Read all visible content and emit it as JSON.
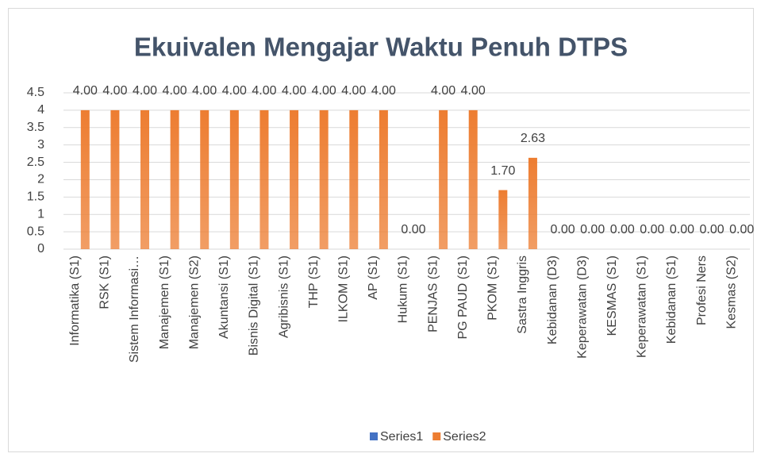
{
  "chart_data": {
    "type": "bar",
    "title": "Ekuivalen Mengajar Waktu Penuh DTPS",
    "categories": [
      "Informatika (S1)",
      "RSK (S1)",
      "Sistem Informasi…",
      "Manajemen (S1)",
      "Manajemen (S2)",
      "Akuntansi  (S1)",
      "Bisnis Digital  (S1)",
      "Agribisnis  (S1)",
      "THP (S1)",
      "ILKOM (S1)",
      "AP (S1)",
      "Hukum (S1)",
      "PENJAS (S1)",
      "PG PAUD (S1)",
      "PKOM (S1)",
      "Sastra Inggris",
      "Kebidanan  (D3)",
      "Keperawatan  (D3)",
      "KESMAS (S1)",
      "Keperawatan (S1)",
      "Kebidanan (S1)",
      "Profesi Ners",
      "Kesmas (S2)"
    ],
    "series": [
      {
        "name": "Series1",
        "color": "#4472C4",
        "values": [
          null,
          null,
          null,
          null,
          null,
          null,
          null,
          null,
          null,
          null,
          null,
          null,
          null,
          null,
          null,
          null,
          null,
          null,
          null,
          null,
          null,
          null,
          null
        ]
      },
      {
        "name": "Series2",
        "color": "#ED7D31",
        "values": [
          4,
          4,
          4,
          4,
          4,
          4,
          4,
          4,
          4,
          4,
          4,
          0,
          4,
          4,
          1.7,
          2.63,
          0,
          0,
          0,
          0,
          0,
          0,
          0
        ],
        "value_labels": [
          "4.00",
          "4.00",
          "4.00",
          "4.00",
          "4.00",
          "4.00",
          "4.00",
          "4.00",
          "4.00",
          "4.00",
          "4.00",
          "0.00",
          "4.00",
          "4.00",
          "1.70",
          "2.63",
          "0.00",
          "0.00",
          "0.00",
          "0.00",
          "0.00",
          "0.00",
          "0.00"
        ]
      }
    ],
    "ylim": [
      0,
      4.5
    ],
    "yticks": [
      0,
      0.5,
      1,
      1.5,
      2,
      2.5,
      3,
      3.5,
      4,
      4.5
    ],
    "grid": true,
    "legend": "bottom"
  }
}
